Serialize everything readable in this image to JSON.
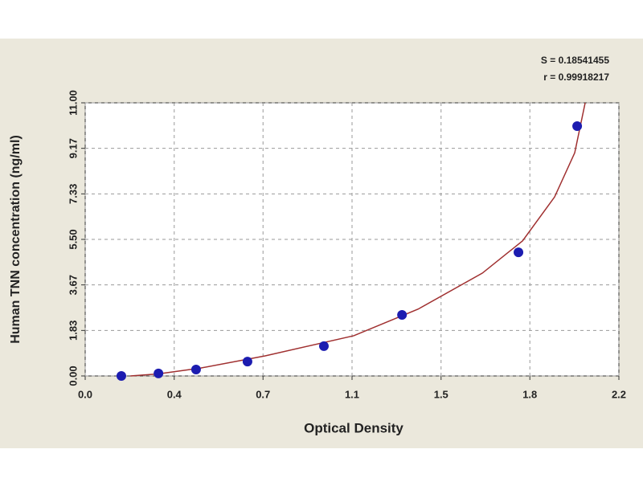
{
  "chart_data": {
    "type": "scatter",
    "annotations": [
      "S = 0.18541455",
      "r = 0.99918217"
    ],
    "x_label": "Optical Density",
    "y_label": "Human TNN concentration (ng/ml)",
    "xlim": [
      0,
      2.2
    ],
    "ylim": [
      0,
      11
    ],
    "xticks": [
      {
        "value": 0,
        "label": "0.0"
      },
      {
        "value": 0.367,
        "label": "0.4"
      },
      {
        "value": 0.733,
        "label": "0.7"
      },
      {
        "value": 1.1,
        "label": "1.1"
      },
      {
        "value": 1.467,
        "label": "1.5"
      },
      {
        "value": 1.833,
        "label": "1.8"
      },
      {
        "value": 2.2,
        "label": "2.2"
      }
    ],
    "yticks": [
      {
        "value": 0,
        "label": "0.00"
      },
      {
        "value": 1.833,
        "label": "1.83"
      },
      {
        "value": 3.667,
        "label": "3.67"
      },
      {
        "value": 5.5,
        "label": "5.50"
      },
      {
        "value": 7.333,
        "label": "7.33"
      },
      {
        "value": 9.167,
        "label": "9.17"
      },
      {
        "value": 11,
        "label": "11.00"
      }
    ],
    "grid": true,
    "series": [
      {
        "style": "points",
        "color": "#1c1cb0",
        "x": [
          0.149,
          0.302,
          0.457,
          0.669,
          0.984,
          1.306,
          1.786,
          2.028
        ],
        "values": [
          0,
          0.1,
          0.26,
          0.58,
          1.2,
          2.46,
          4.98,
          10.06
        ]
      },
      {
        "style": "line",
        "color": "#a03030",
        "x": [
          0.186,
          0.3,
          0.477,
          0.742,
          1.107,
          1.372,
          1.637,
          1.803,
          1.935,
          2.018,
          2.061
        ],
        "values": [
          0,
          0.08,
          0.32,
          0.81,
          1.62,
          2.69,
          4.14,
          5.44,
          7.21,
          8.99,
          11
        ]
      }
    ]
  }
}
